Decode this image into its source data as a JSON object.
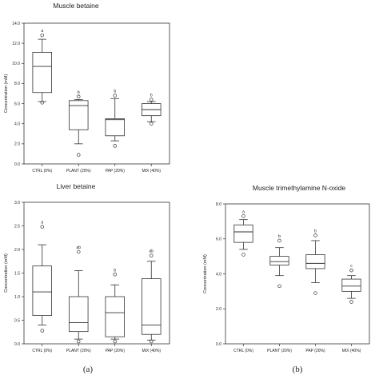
{
  "panel_labels": [
    "(a)",
    "(b)"
  ],
  "chart_data": [
    {
      "type": "box",
      "title": "Muscle betaine",
      "ylabel": "Concentration (mM)",
      "ylim": [
        0,
        14
      ],
      "yticks": [
        "0.0",
        "2.0",
        "4.0",
        "6.0",
        "8.0",
        "10.0",
        "12.0",
        "14.0"
      ],
      "ytick_values": [
        0,
        2,
        4,
        6,
        8,
        10,
        12,
        14
      ],
      "categories": [
        "CTRL (0%)",
        "PLANT (20%)",
        "PAP (20%)",
        "MIX (40%)"
      ],
      "boxes": [
        {
          "min": 6.2,
          "q1": 7.1,
          "median": 9.7,
          "q3": 11.1,
          "max": 12.4,
          "outliers": [
            12.8,
            6.1
          ],
          "sig": "a"
        },
        {
          "min": 2.0,
          "q1": 3.4,
          "median": 5.8,
          "q3": 6.3,
          "max": 6.4,
          "outliers": [
            6.7,
            0.9
          ],
          "sig": "b"
        },
        {
          "min": 2.3,
          "q1": 2.8,
          "median": 4.4,
          "q3": 4.5,
          "max": 6.5,
          "outliers": [
            6.8,
            1.8
          ],
          "sig": "b"
        },
        {
          "min": 4.2,
          "q1": 4.8,
          "median": 5.4,
          "q3": 6.0,
          "max": 6.2,
          "outliers": [
            6.4,
            4.0
          ],
          "sig": "b"
        }
      ]
    },
    {
      "type": "box",
      "title": "Liver betaine",
      "ylabel": "Concentration (mM)",
      "ylim": [
        0,
        3
      ],
      "yticks": [
        "0.0",
        "0.5",
        "1.0",
        "1.5",
        "2.0",
        "2.5",
        "3.0"
      ],
      "ytick_values": [
        0,
        0.5,
        1,
        1.5,
        2,
        2.5,
        3
      ],
      "categories": [
        "CTRL (0%)",
        "PLANT (20%)",
        "PAP (20%)",
        "MIX (40%)"
      ],
      "boxes": [
        {
          "min": 0.4,
          "q1": 0.6,
          "median": 1.1,
          "q3": 1.65,
          "max": 2.1,
          "outliers": [
            2.48,
            0.28
          ],
          "sig": "a"
        },
        {
          "min": 0.1,
          "q1": 0.26,
          "median": 0.45,
          "q3": 1.0,
          "max": 1.55,
          "outliers": [
            1.95,
            0.05
          ],
          "sig": "ab"
        },
        {
          "min": 0.1,
          "q1": 0.15,
          "median": 0.66,
          "q3": 1.0,
          "max": 1.25,
          "outliers": [
            1.47,
            0.05
          ],
          "sig": "b"
        },
        {
          "min": 0.08,
          "q1": 0.2,
          "median": 0.4,
          "q3": 1.38,
          "max": 1.75,
          "outliers": [
            1.87,
            0.05
          ],
          "sig": "ab"
        }
      ]
    },
    {
      "type": "box",
      "title": "Muscle trimethylamine N-oxide",
      "ylabel": "Concentration (mM)",
      "ylim": [
        0,
        8
      ],
      "yticks": [
        "0.0",
        "2.0",
        "4.0",
        "6.0",
        "8.0"
      ],
      "ytick_values": [
        0,
        2,
        4,
        6,
        8
      ],
      "categories": [
        "CTRL (0%)",
        "PLANT (20%)",
        "PAP (20%)",
        "MIX (40%)"
      ],
      "boxes": [
        {
          "min": 5.4,
          "q1": 5.8,
          "median": 6.4,
          "q3": 6.8,
          "max": 7.1,
          "outliers": [
            7.3,
            5.1
          ],
          "sig": "a"
        },
        {
          "min": 3.9,
          "q1": 4.5,
          "median": 4.7,
          "q3": 5.0,
          "max": 5.5,
          "outliers": [
            5.9,
            3.3
          ],
          "sig": "b"
        },
        {
          "min": 3.5,
          "q1": 4.3,
          "median": 4.6,
          "q3": 5.1,
          "max": 5.9,
          "outliers": [
            6.2,
            2.9
          ],
          "sig": "b"
        },
        {
          "min": 2.6,
          "q1": 3.0,
          "median": 3.3,
          "q3": 3.7,
          "max": 3.9,
          "outliers": [
            4.2,
            2.4
          ],
          "sig": "c"
        }
      ]
    }
  ]
}
